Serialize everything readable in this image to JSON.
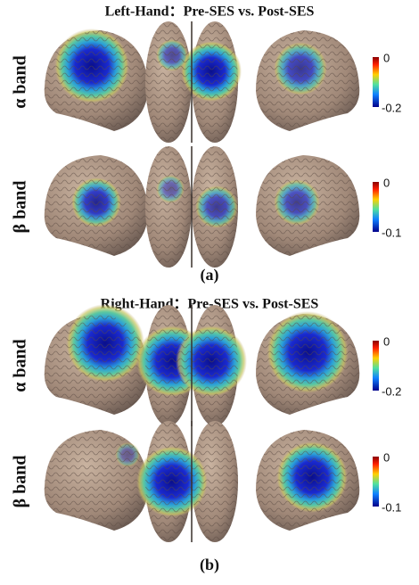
{
  "panels": [
    {
      "title": "Left-Hand：Pre-SES vs. Post-SES",
      "caption": "(a)",
      "rows": [
        {
          "label": "α band",
          "colorbar": {
            "max": 0,
            "min": -0.2
          }
        },
        {
          "label": "β band",
          "colorbar": {
            "max": 0,
            "min": -0.1
          }
        }
      ]
    },
    {
      "title": "Right-Hand：Pre-SES vs. Post-SES",
      "caption": "(b)",
      "rows": [
        {
          "label": "α band",
          "colorbar": {
            "max": 0,
            "min": -0.2
          }
        },
        {
          "label": "β band",
          "colorbar": {
            "max": 0,
            "min": -0.1
          }
        }
      ]
    }
  ]
}
